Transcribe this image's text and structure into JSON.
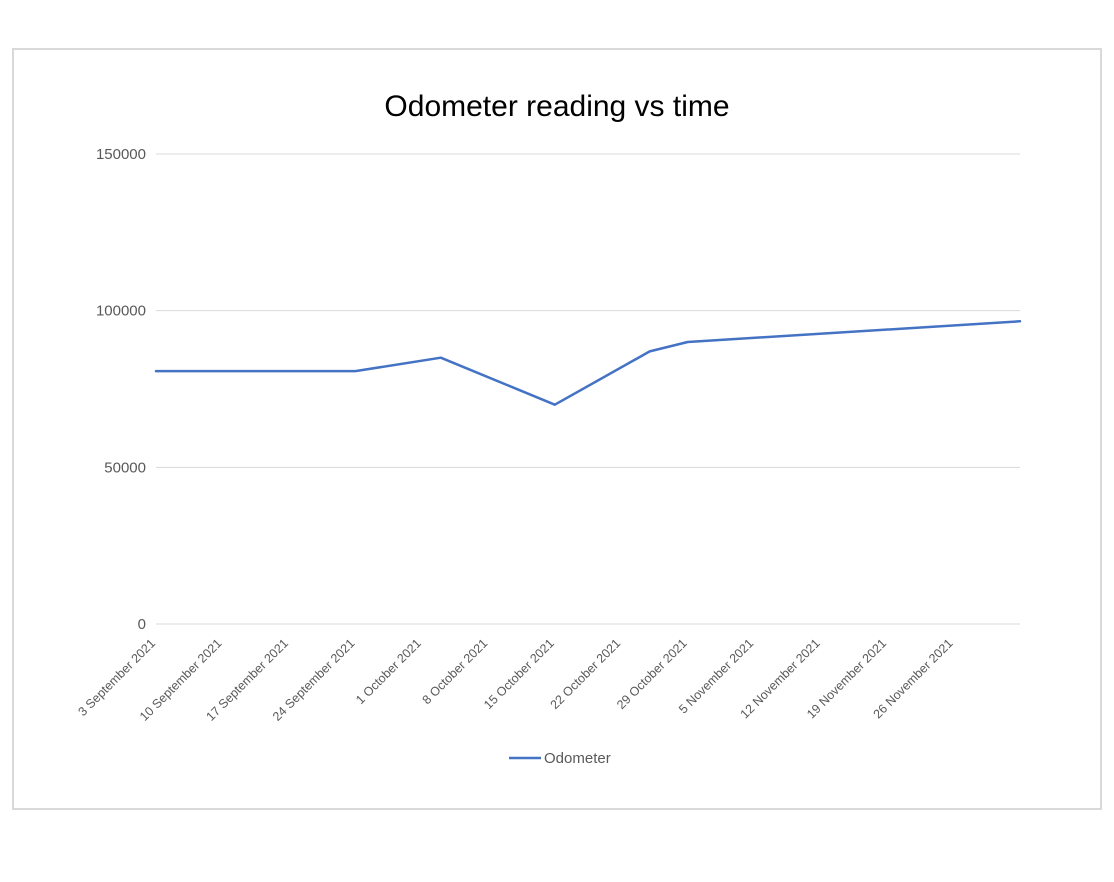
{
  "chart_data": {
    "type": "line",
    "title": "Odometer reading vs time",
    "xlabel": "",
    "ylabel": "",
    "ylim": [
      0,
      150000
    ],
    "yticks": [
      "0",
      "50000",
      "100000",
      "150000"
    ],
    "categories": [
      "3 September 2021",
      "10 September 2021",
      "17 September 2021",
      "24 September 2021",
      "1 October 2021",
      "8 October 2021",
      "15 October 2021",
      "22 October 2021",
      "29 October 2021",
      "5 November 2021",
      "12 November 2021",
      "19 November 2021",
      "26 November 2021"
    ],
    "x_range": [
      "2021-09-03",
      "2021-12-03"
    ],
    "grid": true,
    "legend_position": "bottom",
    "series": [
      {
        "name": "Odometer",
        "color": "#4472c4",
        "points": [
          {
            "x": "2021-09-03",
            "y": 80700
          },
          {
            "x": "2021-09-24",
            "y": 80700
          },
          {
            "x": "2021-10-03",
            "y": 85000
          },
          {
            "x": "2021-10-15",
            "y": 70000
          },
          {
            "x": "2021-10-25",
            "y": 87000
          },
          {
            "x": "2021-10-29",
            "y": 90000
          },
          {
            "x": "2021-12-03",
            "y": 96600
          }
        ]
      }
    ]
  }
}
